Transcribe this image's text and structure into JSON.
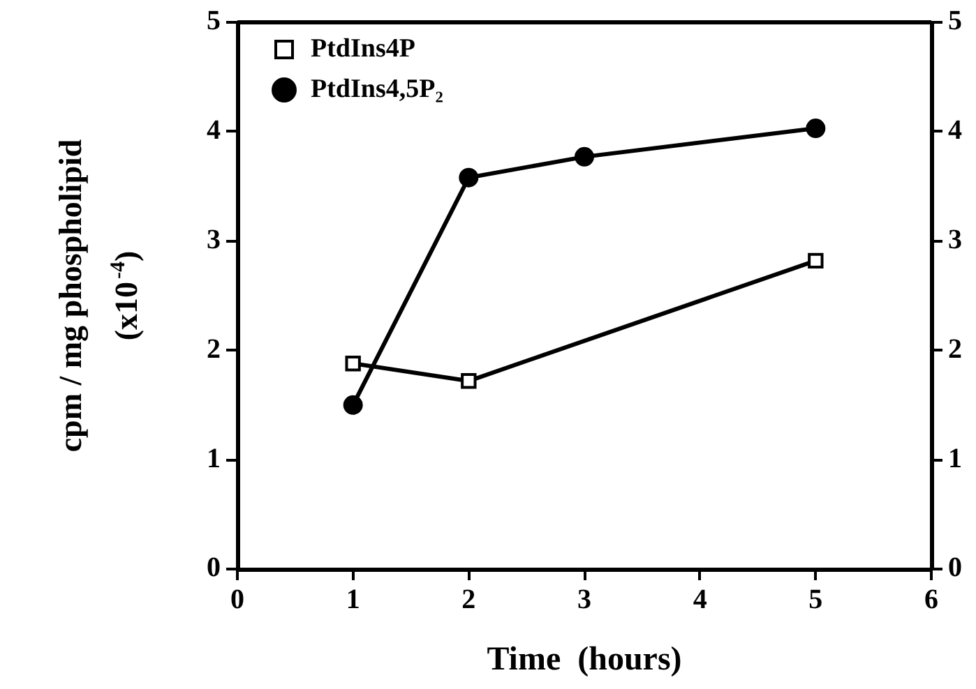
{
  "chart_data": {
    "type": "line",
    "xlabel": "Time  (hours)",
    "ylabel": "cpm / mg phospholipid (x10$^{-4}$)",
    "xlim": [
      0,
      6
    ],
    "xticks": [
      0,
      1,
      2,
      3,
      4,
      5,
      6
    ],
    "ylim": [
      0,
      5
    ],
    "yticks": [
      0,
      1,
      2,
      3,
      4,
      5
    ],
    "y2lim": [
      0,
      5
    ],
    "y2ticks": [
      0,
      1,
      2,
      3,
      4,
      5
    ],
    "grid": false,
    "legend": "top left",
    "line_style": "solid",
    "series": [
      {
        "name": "PtdIns4P",
        "color": "#000000",
        "marker": "square",
        "x": [
          1,
          2,
          5
        ],
        "values": [
          1.88,
          1.72,
          2.82
        ]
      },
      {
        "name": "PtdIns4,5P₂",
        "color": "#000000",
        "marker": "circle",
        "x": [
          1,
          2,
          3,
          5
        ],
        "values": [
          1.5,
          3.58,
          3.77,
          4.03
        ]
      }
    ]
  }
}
